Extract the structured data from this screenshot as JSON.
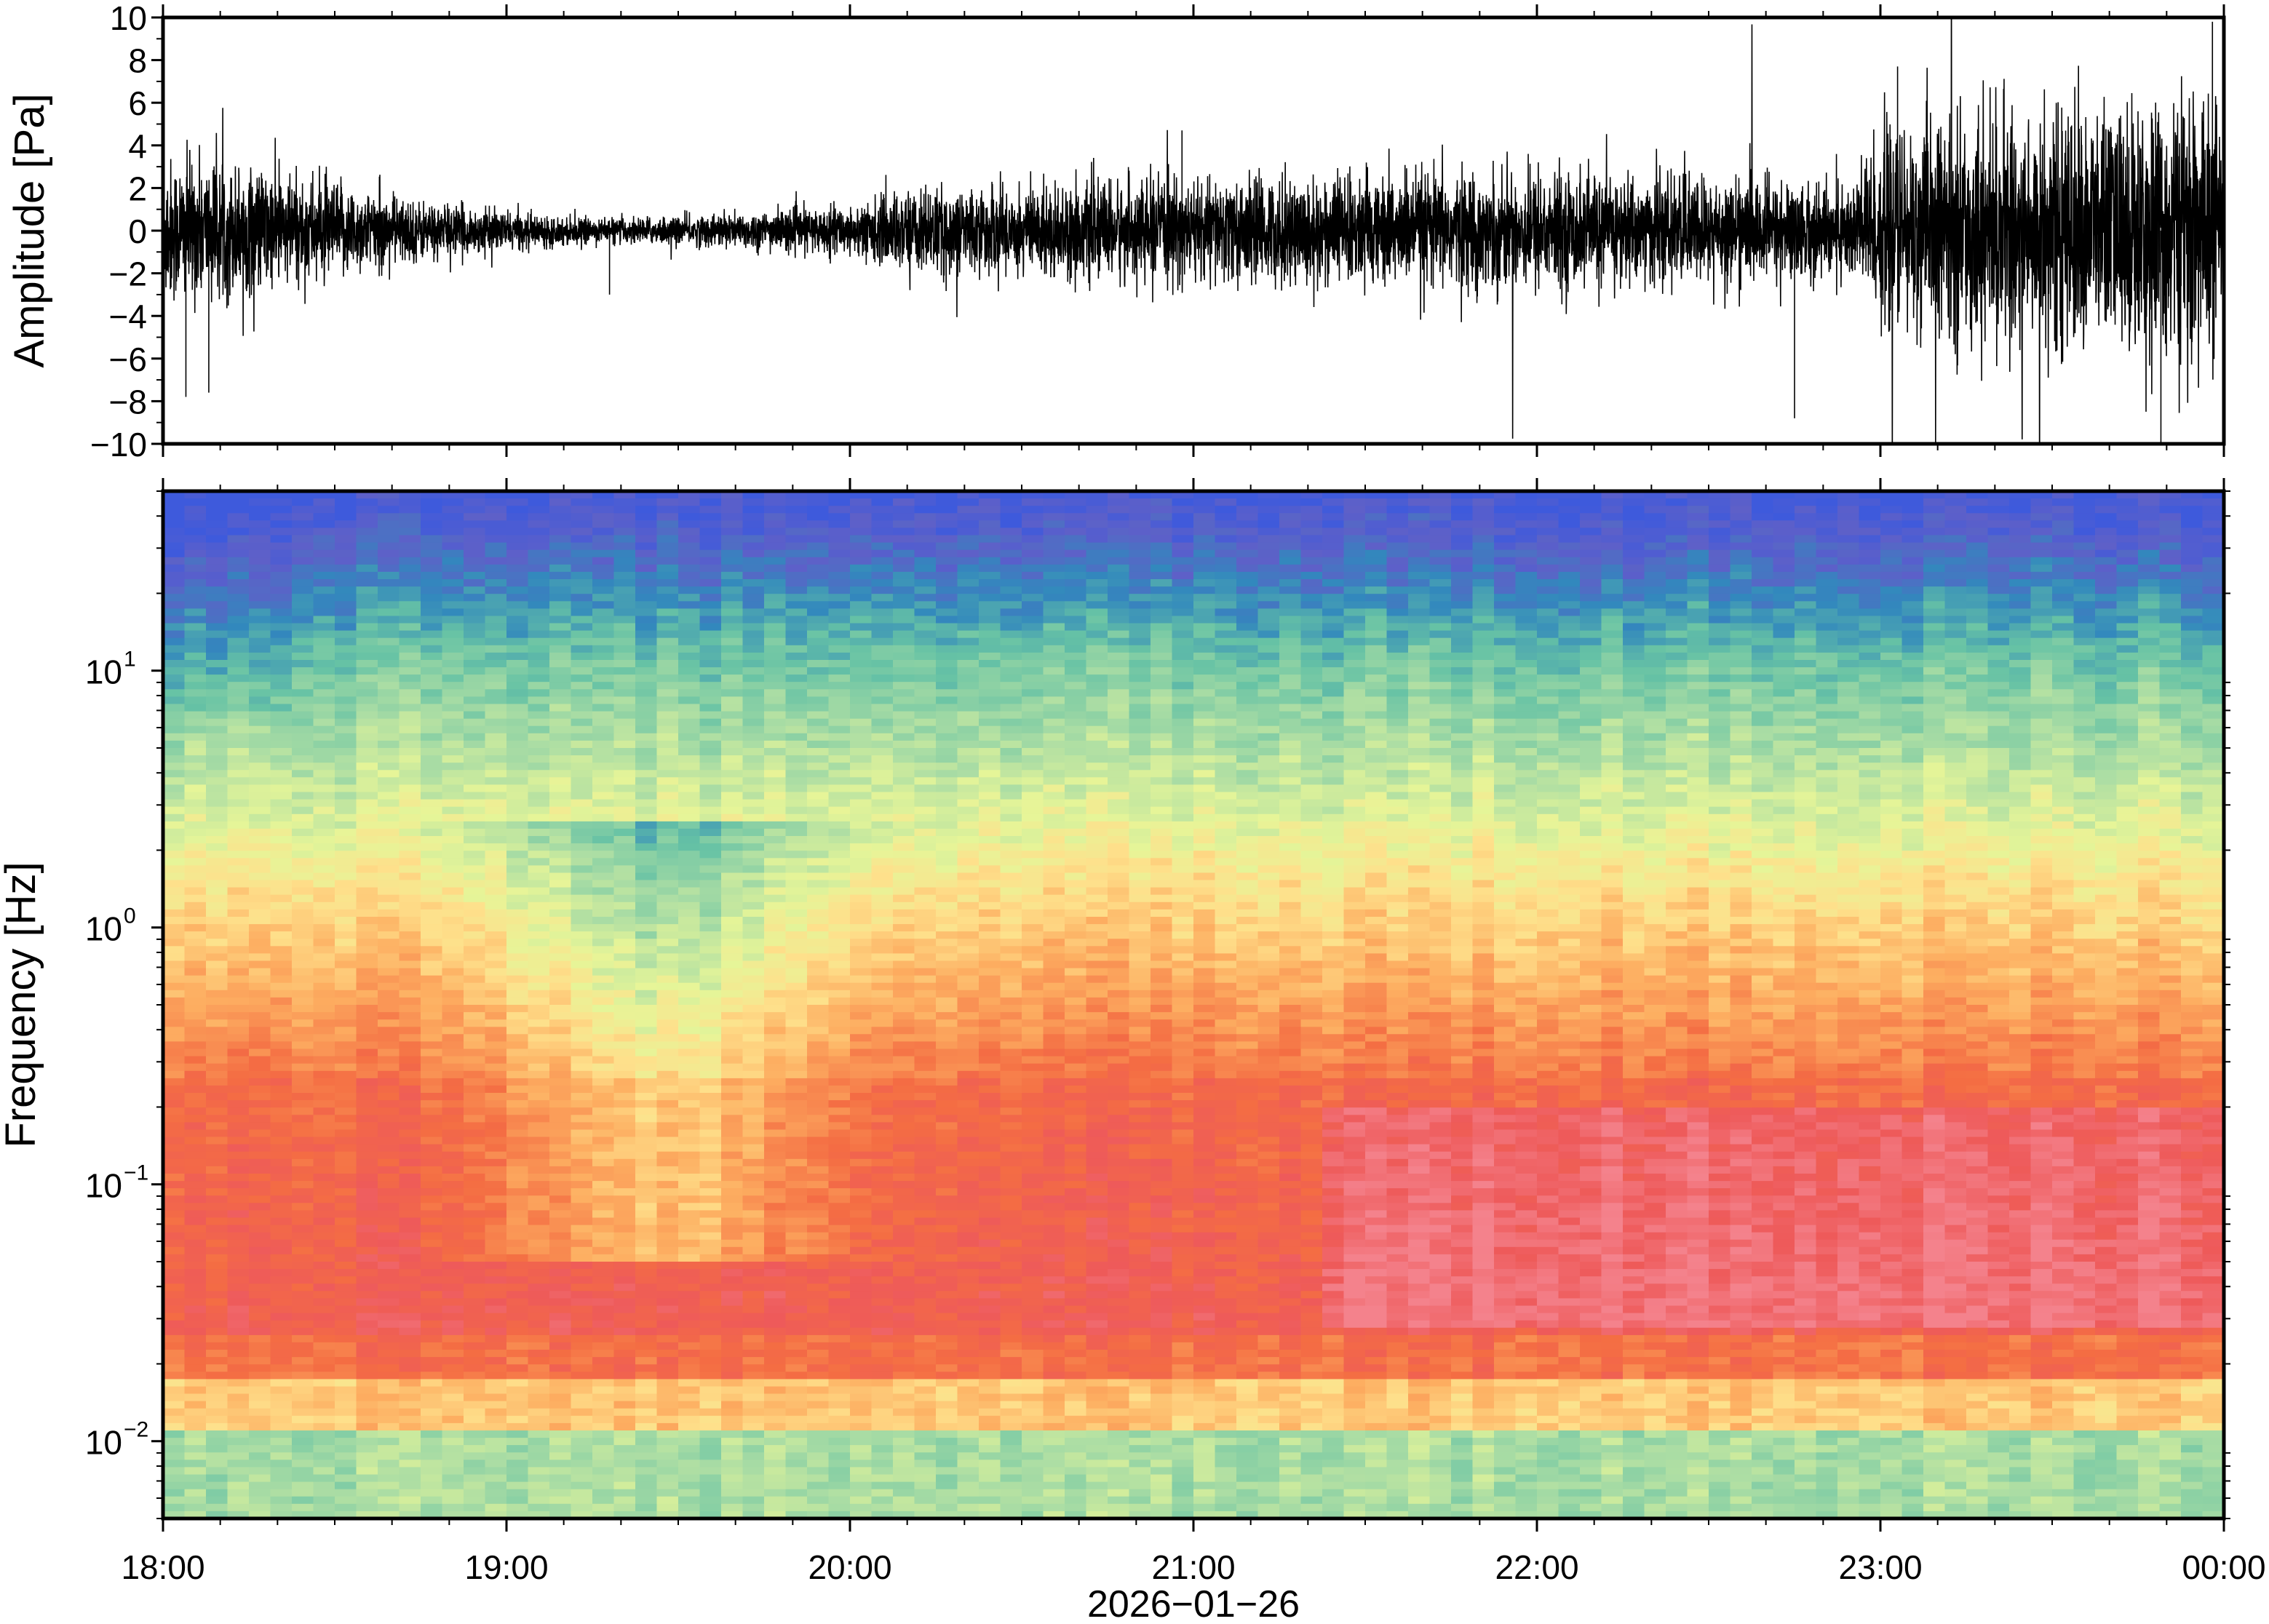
{
  "chart_data": [
    {
      "type": "line",
      "panel": "waveform",
      "ylabel": "Amplitude [Pa]",
      "ylim": [
        -10,
        10
      ],
      "yticks": [
        -10,
        -8,
        -6,
        -4,
        -2,
        0,
        2,
        4,
        6,
        8,
        10
      ],
      "ytick_labels": [
        "−10",
        "−8",
        "−6",
        "−4",
        "−2",
        "0",
        "2",
        "4",
        "6",
        "8",
        "10"
      ],
      "xlim": [
        "18:00",
        "00:00"
      ],
      "envelope": {
        "x_hours": [
          18.0,
          18.25,
          18.5,
          18.75,
          19.0,
          19.25,
          19.5,
          19.75,
          20.0,
          20.15,
          20.5,
          21.0,
          21.5,
          22.0,
          22.5,
          22.9,
          23.0,
          23.25,
          23.5,
          23.75,
          24.0
        ],
        "amplitude": [
          2.8,
          2.4,
          1.8,
          1.1,
          0.7,
          0.45,
          0.55,
          0.75,
          0.9,
          1.5,
          1.7,
          1.9,
          2.1,
          2.2,
          2.0,
          1.8,
          3.6,
          4.2,
          4.5,
          4.8,
          5.0
        ]
      },
      "spikes": [
        {
          "time": "18:04",
          "amplitude": -7.8
        },
        {
          "time": "18:08",
          "amplitude": -7.6
        },
        {
          "time": "19:18",
          "amplitude": -3.0
        },
        {
          "time": "20:58",
          "amplitude": 4.7
        },
        {
          "time": "22:45",
          "amplitude": -8.8
        },
        {
          "time": "23:03",
          "amplitude": 7.7
        },
        {
          "time": "23:49",
          "amplitude": -10.0
        },
        {
          "time": "23:58",
          "amplitude": 9.8
        }
      ]
    },
    {
      "type": "heatmap",
      "panel": "spectrogram",
      "ylabel": "Frequency [Hz]",
      "yscale": "log",
      "ylim": [
        0.005,
        50
      ],
      "yticks": [
        0.01,
        0.1,
        1,
        10
      ],
      "ytick_mantissa": [
        "10",
        "10",
        "10",
        "10"
      ],
      "ytick_exponents": [
        "−2",
        "−1",
        "0",
        "1"
      ],
      "xlim": [
        "18:00",
        "00:00"
      ],
      "colormap": "Spectral_r",
      "description_of_values": "relative power; high at low frequencies (red 0.02–0.5 Hz), decreasing to blue above 20 Hz; a quieter (yellow) band near 19:00–20:00 at 0.1–1 Hz; greens/cyans below 0.015 Hz"
    }
  ],
  "x_axis": {
    "ticks": [
      "18:00",
      "19:00",
      "20:00",
      "21:00",
      "22:00",
      "23:00",
      "00:00"
    ],
    "date_label": "2026−01−26"
  }
}
